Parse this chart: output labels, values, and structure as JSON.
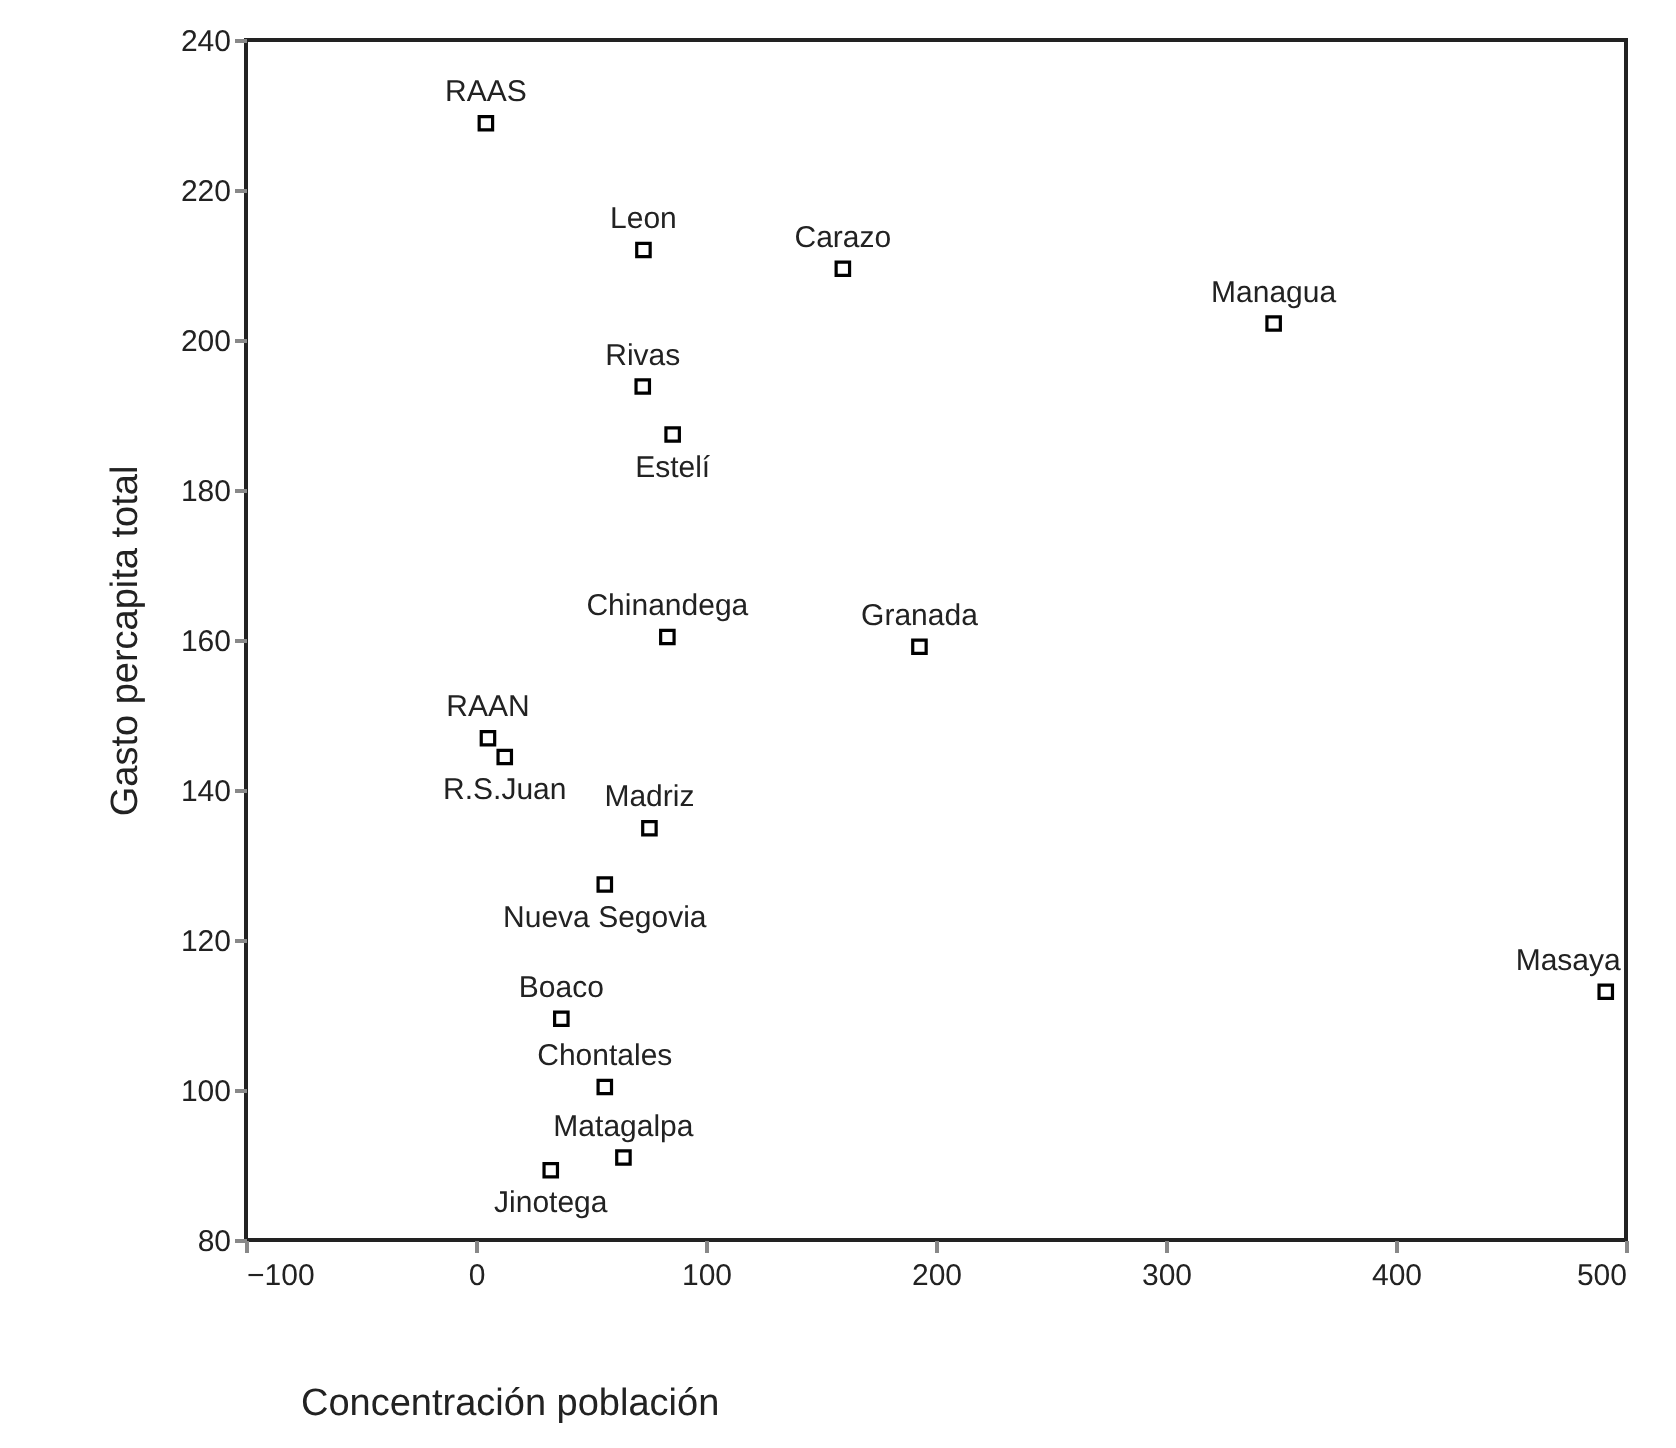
{
  "chart_data": {
    "type": "scatter",
    "xlabel": "Concentración población",
    "ylabel": "Gasto percapita total",
    "x": [
      4.3,
      72.8,
      159.5,
      72.5,
      85.5,
      83.2,
      192.8,
      5.2,
      12.5,
      75.4,
      56,
      37.1,
      56,
      64.1,
      32.5,
      346.8,
      491.2
    ],
    "series": [
      {
        "color": "#000000",
        "values": [
          228.9,
          212,
          209.5,
          193.8,
          187.4,
          160.4,
          159.1,
          146.9,
          144.4,
          134.9,
          127.4,
          109.5,
          100.4,
          91,
          89.3,
          202.2,
          113.1
        ]
      }
    ],
    "marker": "square",
    "xlim": [
      -100,
      500
    ],
    "xticks": [
      -100,
      0,
      100,
      200,
      300,
      400,
      500
    ],
    "ylim": [
      80,
      240
    ],
    "yticks": [
      80,
      100,
      120,
      140,
      160,
      180,
      200,
      220,
      240
    ],
    "annotations": [
      {
        "text": "RAAS",
        "x": 4.3,
        "y": 228.9
      },
      {
        "text": "Leon",
        "x": 72.8,
        "y": 212
      },
      {
        "text": "Carazo",
        "x": 159.5,
        "y": 209.5
      },
      {
        "text": "Rivas",
        "x": 72.5,
        "y": 193.8
      },
      {
        "text": "Estelí",
        "x": 85.5,
        "y": 187.4
      },
      {
        "text": "Chinandega",
        "x": 83.2,
        "y": 160.4
      },
      {
        "text": "Granada",
        "x": 192.8,
        "y": 159.1
      },
      {
        "text": "RAAN",
        "x": 5.2,
        "y": 146.9
      },
      {
        "text": "R.S.Juan",
        "x": 12.5,
        "y": 144.4
      },
      {
        "text": "Madriz",
        "x": 75.4,
        "y": 134.9
      },
      {
        "text": "Nueva Segovia",
        "x": 56,
        "y": 127.4
      },
      {
        "text": "Boaco",
        "x": 37.1,
        "y": 109.5
      },
      {
        "text": "Chontales",
        "x": 56,
        "y": 100.4
      },
      {
        "text": "Matagalpa",
        "x": 64.1,
        "y": 91
      },
      {
        "text": "Jinotega",
        "x": 32.5,
        "y": 89.3
      },
      {
        "text": "Managua",
        "x": 346.8,
        "y": 202.2
      },
      {
        "text": "Masaya",
        "x": 491.2,
        "y": 113.1
      }
    ]
  }
}
